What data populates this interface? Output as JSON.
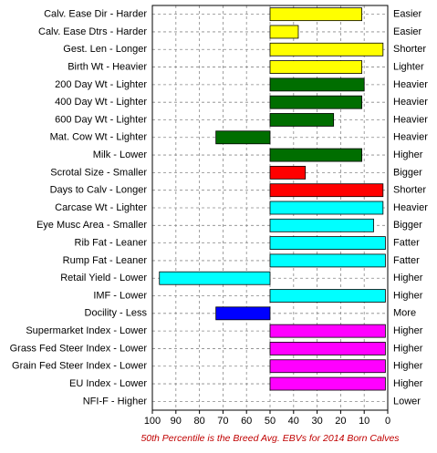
{
  "chart_data": {
    "type": "barh",
    "categories": [
      "Calv. Ease Dir - Harder",
      "Calv. Ease Dtrs - Harder",
      "Gest. Len - Longer",
      "Birth Wt - Heavier",
      "200 Day Wt - Lighter",
      "400 Day Wt - Lighter",
      "600 Day Wt - Lighter",
      "Mat. Cow Wt - Lighter",
      "Milk - Lower",
      "Scrotal Size - Smaller",
      "Days to Calv - Longer",
      "Carcase Wt - Lighter",
      "Eye Musc Area - Smaller",
      "Rib Fat - Leaner",
      "Rump Fat - Leaner",
      "Retail Yield - Lower",
      "IMF - Lower",
      "Docility - Less",
      "Supermarket Index - Lower",
      "Grass Fed Steer Index - Lower",
      "Grain Fed Steer Index - Lower",
      "EU Index - Lower",
      "NFI-F - Higher"
    ],
    "right_labels": [
      "Easier",
      "Easier",
      "Shorter",
      "Lighter",
      "Heavier",
      "Heavier",
      "Heavier",
      "Heavier",
      "Higher",
      "Bigger",
      "Shorter",
      "Heavier",
      "Bigger",
      "Fatter",
      "Fatter",
      "Higher",
      "Higher",
      "More",
      "Higher",
      "Higher",
      "Higher",
      "Higher",
      "Lower"
    ],
    "values": [
      11,
      38,
      2,
      11,
      10,
      11,
      23,
      73,
      11,
      35,
      2,
      2,
      6,
      1,
      1,
      97,
      1,
      73,
      1,
      1,
      1,
      1,
      50
    ],
    "colors": [
      "#ffff00",
      "#ffff00",
      "#ffff00",
      "#ffff00",
      "#006e00",
      "#006e00",
      "#006e00",
      "#006e00",
      "#006e00",
      "#ff0000",
      "#ff0000",
      "#00ffff",
      "#00ffff",
      "#00ffff",
      "#00ffff",
      "#00ffff",
      "#00ffff",
      "#0000ff",
      "#ff00ff",
      "#ff00ff",
      "#ff00ff",
      "#ff00ff",
      "#ff00ff"
    ],
    "bar_base": 50,
    "xlim": [
      100,
      0
    ],
    "xticks": [
      100,
      90,
      80,
      70,
      60,
      50,
      40,
      30,
      20,
      10,
      0
    ],
    "grid": true,
    "caption": "50th Percentile is the Breed Avg. EBVs for 2014 Born Calves"
  }
}
